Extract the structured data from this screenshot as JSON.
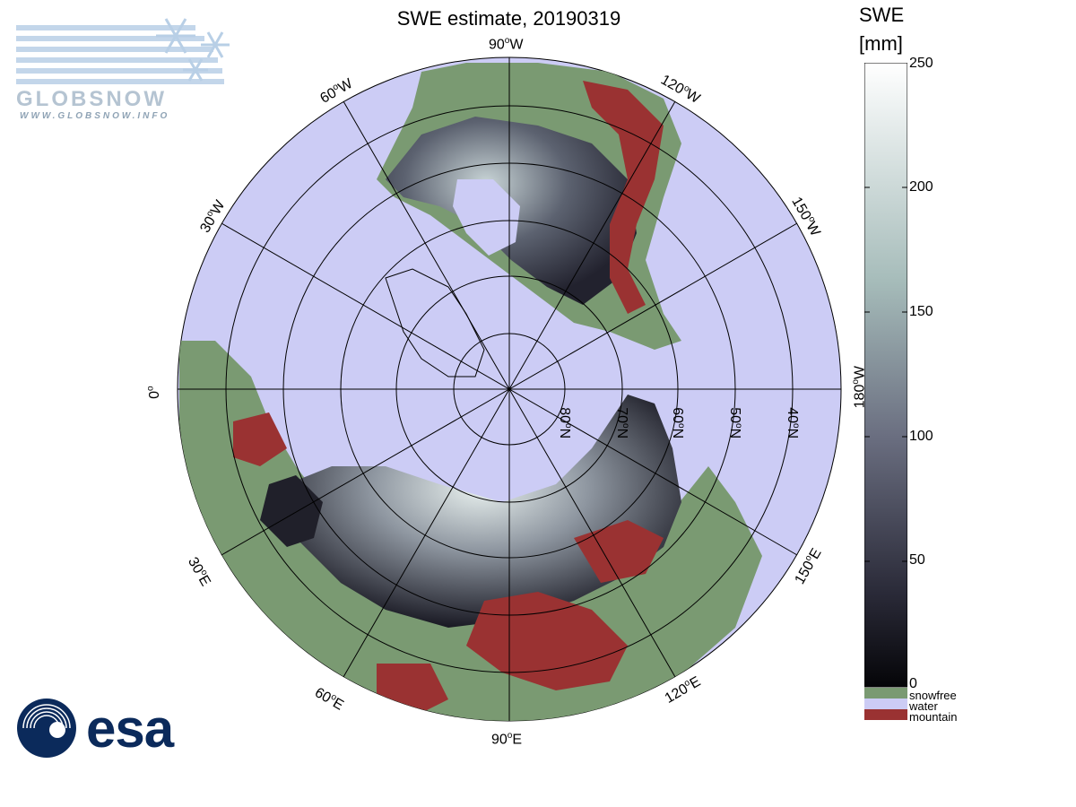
{
  "title": "SWE estimate, 20190319",
  "longitude_labels": [
    {
      "text": "90",
      "suffix": "W"
    },
    {
      "text": "120",
      "suffix": "W"
    },
    {
      "text": "150",
      "suffix": "W"
    },
    {
      "text": "180",
      "suffix": "W"
    },
    {
      "text": "150",
      "suffix": "E"
    },
    {
      "text": "120",
      "suffix": "E"
    },
    {
      "text": "90",
      "suffix": "E"
    },
    {
      "text": "60",
      "suffix": "E"
    },
    {
      "text": "30",
      "suffix": "E"
    },
    {
      "text": "0",
      "suffix": ""
    },
    {
      "text": "30",
      "suffix": "W"
    },
    {
      "text": "60",
      "suffix": "W"
    }
  ],
  "latitude_labels": [
    {
      "text": "80",
      "suffix": "N"
    },
    {
      "text": "70",
      "suffix": "N"
    },
    {
      "text": "60",
      "suffix": "N"
    },
    {
      "text": "50",
      "suffix": "N"
    },
    {
      "text": "40",
      "suffix": "N"
    }
  ],
  "colorbar": {
    "title_line1": "SWE",
    "title_line2": "[mm]",
    "ticks": [
      "250",
      "200",
      "150",
      "100",
      "50",
      "0"
    ],
    "range": [
      0,
      250
    ]
  },
  "legend": [
    {
      "label": "snowfree",
      "color": "#7a9a72"
    },
    {
      "label": "water",
      "color": "#ccccf5"
    },
    {
      "label": "mountain",
      "color": "#9a3232"
    }
  ],
  "logos": {
    "globsnow_text": "GLOBSNOW",
    "globsnow_url": "WWW.GLOBSNOW.INFO",
    "esa_text": "esa"
  },
  "colors": {
    "water": "#ccccf5",
    "snowfree": "#7a9a72",
    "mountain": "#9a3232",
    "swe_low": "#0a0a10",
    "swe_high": "#ffffff"
  }
}
